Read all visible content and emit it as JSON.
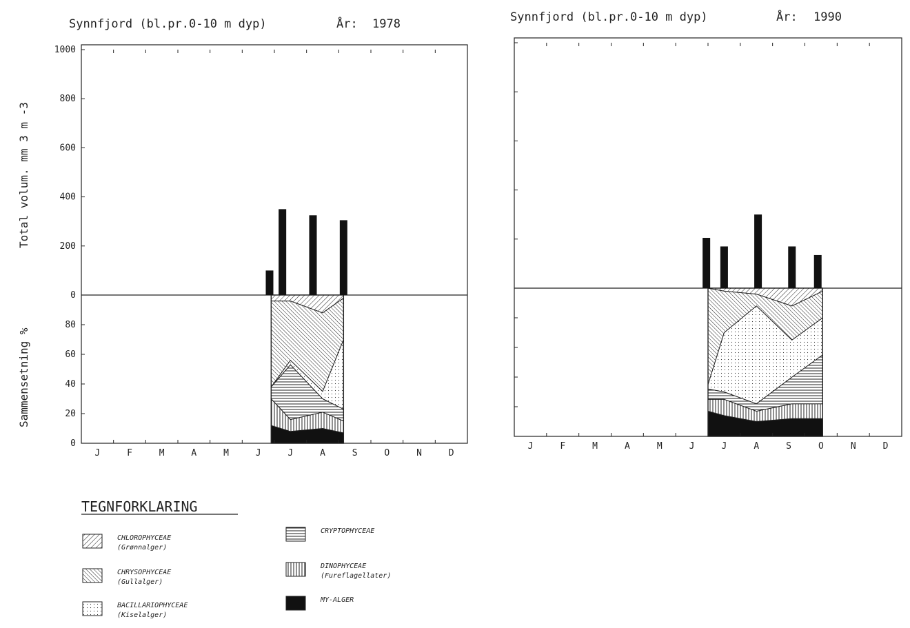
{
  "chart_data": [
    {
      "type": "bar",
      "title": "Synnfjord (bl.pr.0-10 m dyp)",
      "year_label": "År:",
      "year": "1978",
      "ylabel": "Total volum. mm 3 m -3",
      "ylim": [
        0,
        1000
      ],
      "yticks": [
        "1000",
        "800",
        "600",
        "400",
        "200",
        "0"
      ],
      "y_tick_values": [
        1000,
        800,
        600,
        400,
        200,
        0
      ],
      "months": [
        "J",
        "F",
        "M",
        "A",
        "M",
        "J",
        "J",
        "A",
        "S",
        "O",
        "N",
        "D"
      ],
      "bars": [
        {
          "month": 5.85,
          "value": 100
        },
        {
          "month": 6.25,
          "value": 350
        },
        {
          "month": 7.2,
          "value": 325
        },
        {
          "month": 8.15,
          "value": 305
        }
      ],
      "composition": {
        "ylabel": "Sammensetning %",
        "yticks": [
          "80",
          "60",
          "40",
          "20",
          "0"
        ],
        "y_tick_values": [
          80,
          60,
          40,
          20,
          0
        ],
        "x": [
          5.9,
          6.5,
          7.5,
          8.15
        ],
        "layers": [
          {
            "group": "MY-ALGER",
            "top": [
              12,
              8,
              10,
              7
            ]
          },
          {
            "group": "DINOPHYCEAE",
            "top": [
              30,
              16,
              21,
              15
            ]
          },
          {
            "group": "CRYPTOPHYCEAE",
            "top": [
              38,
              53,
              30,
              23
            ]
          },
          {
            "group": "BACILLARIOPHYCEAE",
            "top": [
              38,
              56,
              35,
              70
            ]
          },
          {
            "group": "CHRYSOPHYCEAE",
            "top": [
              96,
              96,
              88,
              98
            ]
          },
          {
            "group": "CHLOROPHYCEAE",
            "top": [
              100,
              100,
              100,
              100
            ]
          }
        ]
      }
    },
    {
      "type": "bar",
      "title": "Synnfjord (bl.pr.0-10 m dyp)",
      "year_label": "År:",
      "year": "1990",
      "ylim": [
        0,
        1000
      ],
      "months": [
        "J",
        "F",
        "M",
        "A",
        "M",
        "J",
        "J",
        "A",
        "S",
        "O",
        "N",
        "D"
      ],
      "bars": [
        {
          "month": 5.95,
          "value": 205
        },
        {
          "month": 6.5,
          "value": 170
        },
        {
          "month": 7.55,
          "value": 300
        },
        {
          "month": 8.6,
          "value": 170
        },
        {
          "month": 9.4,
          "value": 135
        }
      ],
      "composition": {
        "x": [
          6.0,
          6.5,
          7.5,
          8.6,
          9.55
        ],
        "layers": [
          {
            "group": "MY-ALGER",
            "top": [
              17,
              14,
              10,
              12,
              12
            ]
          },
          {
            "group": "DINOPHYCEAE",
            "top": [
              25,
              25,
              17,
              22,
              22
            ]
          },
          {
            "group": "CRYPTOPHYCEAE",
            "top": [
              32,
              30,
              22,
              40,
              55
            ]
          },
          {
            "group": "BACILLARIOPHYCEAE",
            "top": [
              35,
              70,
              88,
              65,
              80
            ]
          },
          {
            "group": "CHRYSOPHYCEAE",
            "top": [
              100,
              98,
              96,
              88,
              98
            ]
          },
          {
            "group": "CHLOROPHYCEAE",
            "top": [
              100,
              100,
              100,
              100,
              100
            ]
          }
        ]
      }
    }
  ],
  "legend": {
    "heading": "TEGNFORKLARING",
    "items": [
      {
        "key": "CHLOROPHYCEAE",
        "name": "CHLOROPHYCEAE",
        "sub": "(Grønnalger)",
        "pattern": "hatch-45"
      },
      {
        "key": "CHRYSOPHYCEAE",
        "name": "CHRYSOPHYCEAE",
        "sub": "(Gullalger)",
        "pattern": "hatch-135"
      },
      {
        "key": "BACILLARIOPHYCEAE",
        "name": "BACILLARIOPHYCEAE",
        "sub": "(Kiselalger)",
        "pattern": "dots"
      },
      {
        "key": "CRYPTOPHYCEAE",
        "name": "CRYPTOPHYCEAE",
        "sub": "",
        "pattern": "horizontal-lines"
      },
      {
        "key": "DINOPHYCEAE",
        "name": "DINOPHYCEAE",
        "sub": "(Fureflagellater)",
        "pattern": "vertical-lines"
      },
      {
        "key": "MY-ALGER",
        "name": "MY-ALGER",
        "sub": "",
        "pattern": "solid"
      }
    ]
  }
}
